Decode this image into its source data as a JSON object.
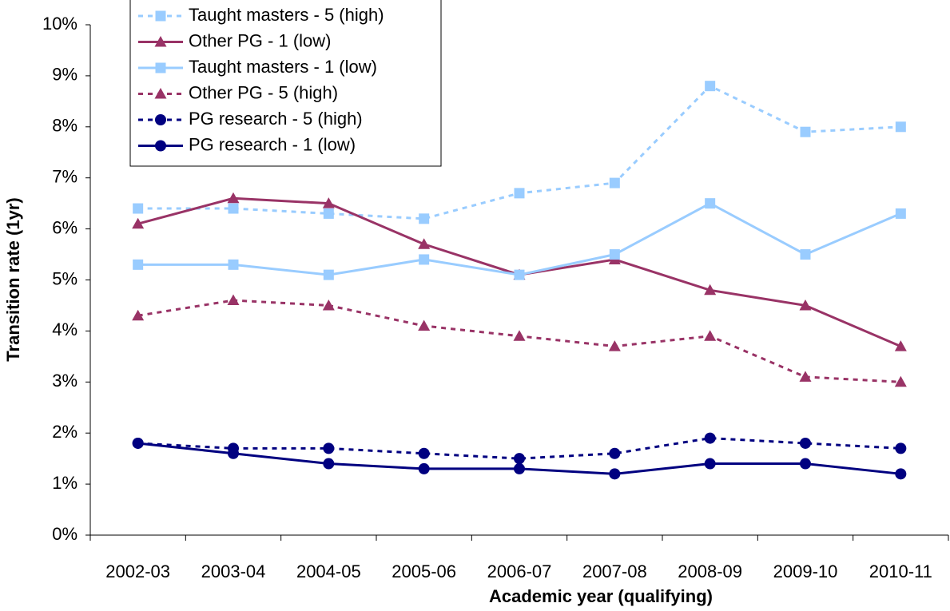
{
  "chart_data": {
    "type": "line",
    "x_label": "Academic year (qualifying)",
    "y_label": "Transition rate (1yr)",
    "categories": [
      "2002-03",
      "2003-04",
      "2004-05",
      "2005-06",
      "2006-07",
      "2007-08",
      "2008-09",
      "2009-10",
      "2010-11"
    ],
    "ylim": [
      0,
      10
    ],
    "yticks": [
      {
        "value": 0,
        "label": "0%"
      },
      {
        "value": 1,
        "label": "1%"
      },
      {
        "value": 2,
        "label": "2%"
      },
      {
        "value": 3,
        "label": "3%"
      },
      {
        "value": 4,
        "label": "4%"
      },
      {
        "value": 5,
        "label": "5%"
      },
      {
        "value": 6,
        "label": "6%"
      },
      {
        "value": 7,
        "label": "7%"
      },
      {
        "value": 8,
        "label": "8%"
      },
      {
        "value": 9,
        "label": "9%"
      },
      {
        "value": 10,
        "label": "10%"
      }
    ],
    "grid": false,
    "legend": "upper left",
    "series": [
      {
        "name": "Taught masters - 5 (high)",
        "color": "#99ccff",
        "dash": true,
        "marker": "square",
        "values": [
          6.4,
          6.4,
          6.3,
          6.2,
          6.7,
          6.9,
          8.8,
          7.9,
          8.0
        ]
      },
      {
        "name": "Other PG - 1 (low)",
        "color": "#993366",
        "dash": false,
        "marker": "triangle",
        "values": [
          6.1,
          6.6,
          6.5,
          5.7,
          5.1,
          5.4,
          4.8,
          4.5,
          3.7
        ]
      },
      {
        "name": "Taught masters - 1 (low)",
        "color": "#99ccff",
        "dash": false,
        "marker": "square",
        "values": [
          5.3,
          5.3,
          5.1,
          5.4,
          5.1,
          5.5,
          6.5,
          5.5,
          6.3
        ]
      },
      {
        "name": "Other PG - 5 (high)",
        "color": "#993366",
        "dash": true,
        "marker": "triangle",
        "values": [
          4.3,
          4.6,
          4.5,
          4.1,
          3.9,
          3.7,
          3.9,
          3.1,
          3.0
        ]
      },
      {
        "name": "PG research - 5 (high)",
        "color": "#000080",
        "dash": true,
        "marker": "circle",
        "values": [
          1.8,
          1.7,
          1.7,
          1.6,
          1.5,
          1.6,
          1.9,
          1.8,
          1.7
        ]
      },
      {
        "name": "PG research - 1 (low)",
        "color": "#000080",
        "dash": false,
        "marker": "circle",
        "values": [
          1.8,
          1.6,
          1.4,
          1.3,
          1.3,
          1.2,
          1.4,
          1.4,
          1.2
        ]
      }
    ]
  }
}
